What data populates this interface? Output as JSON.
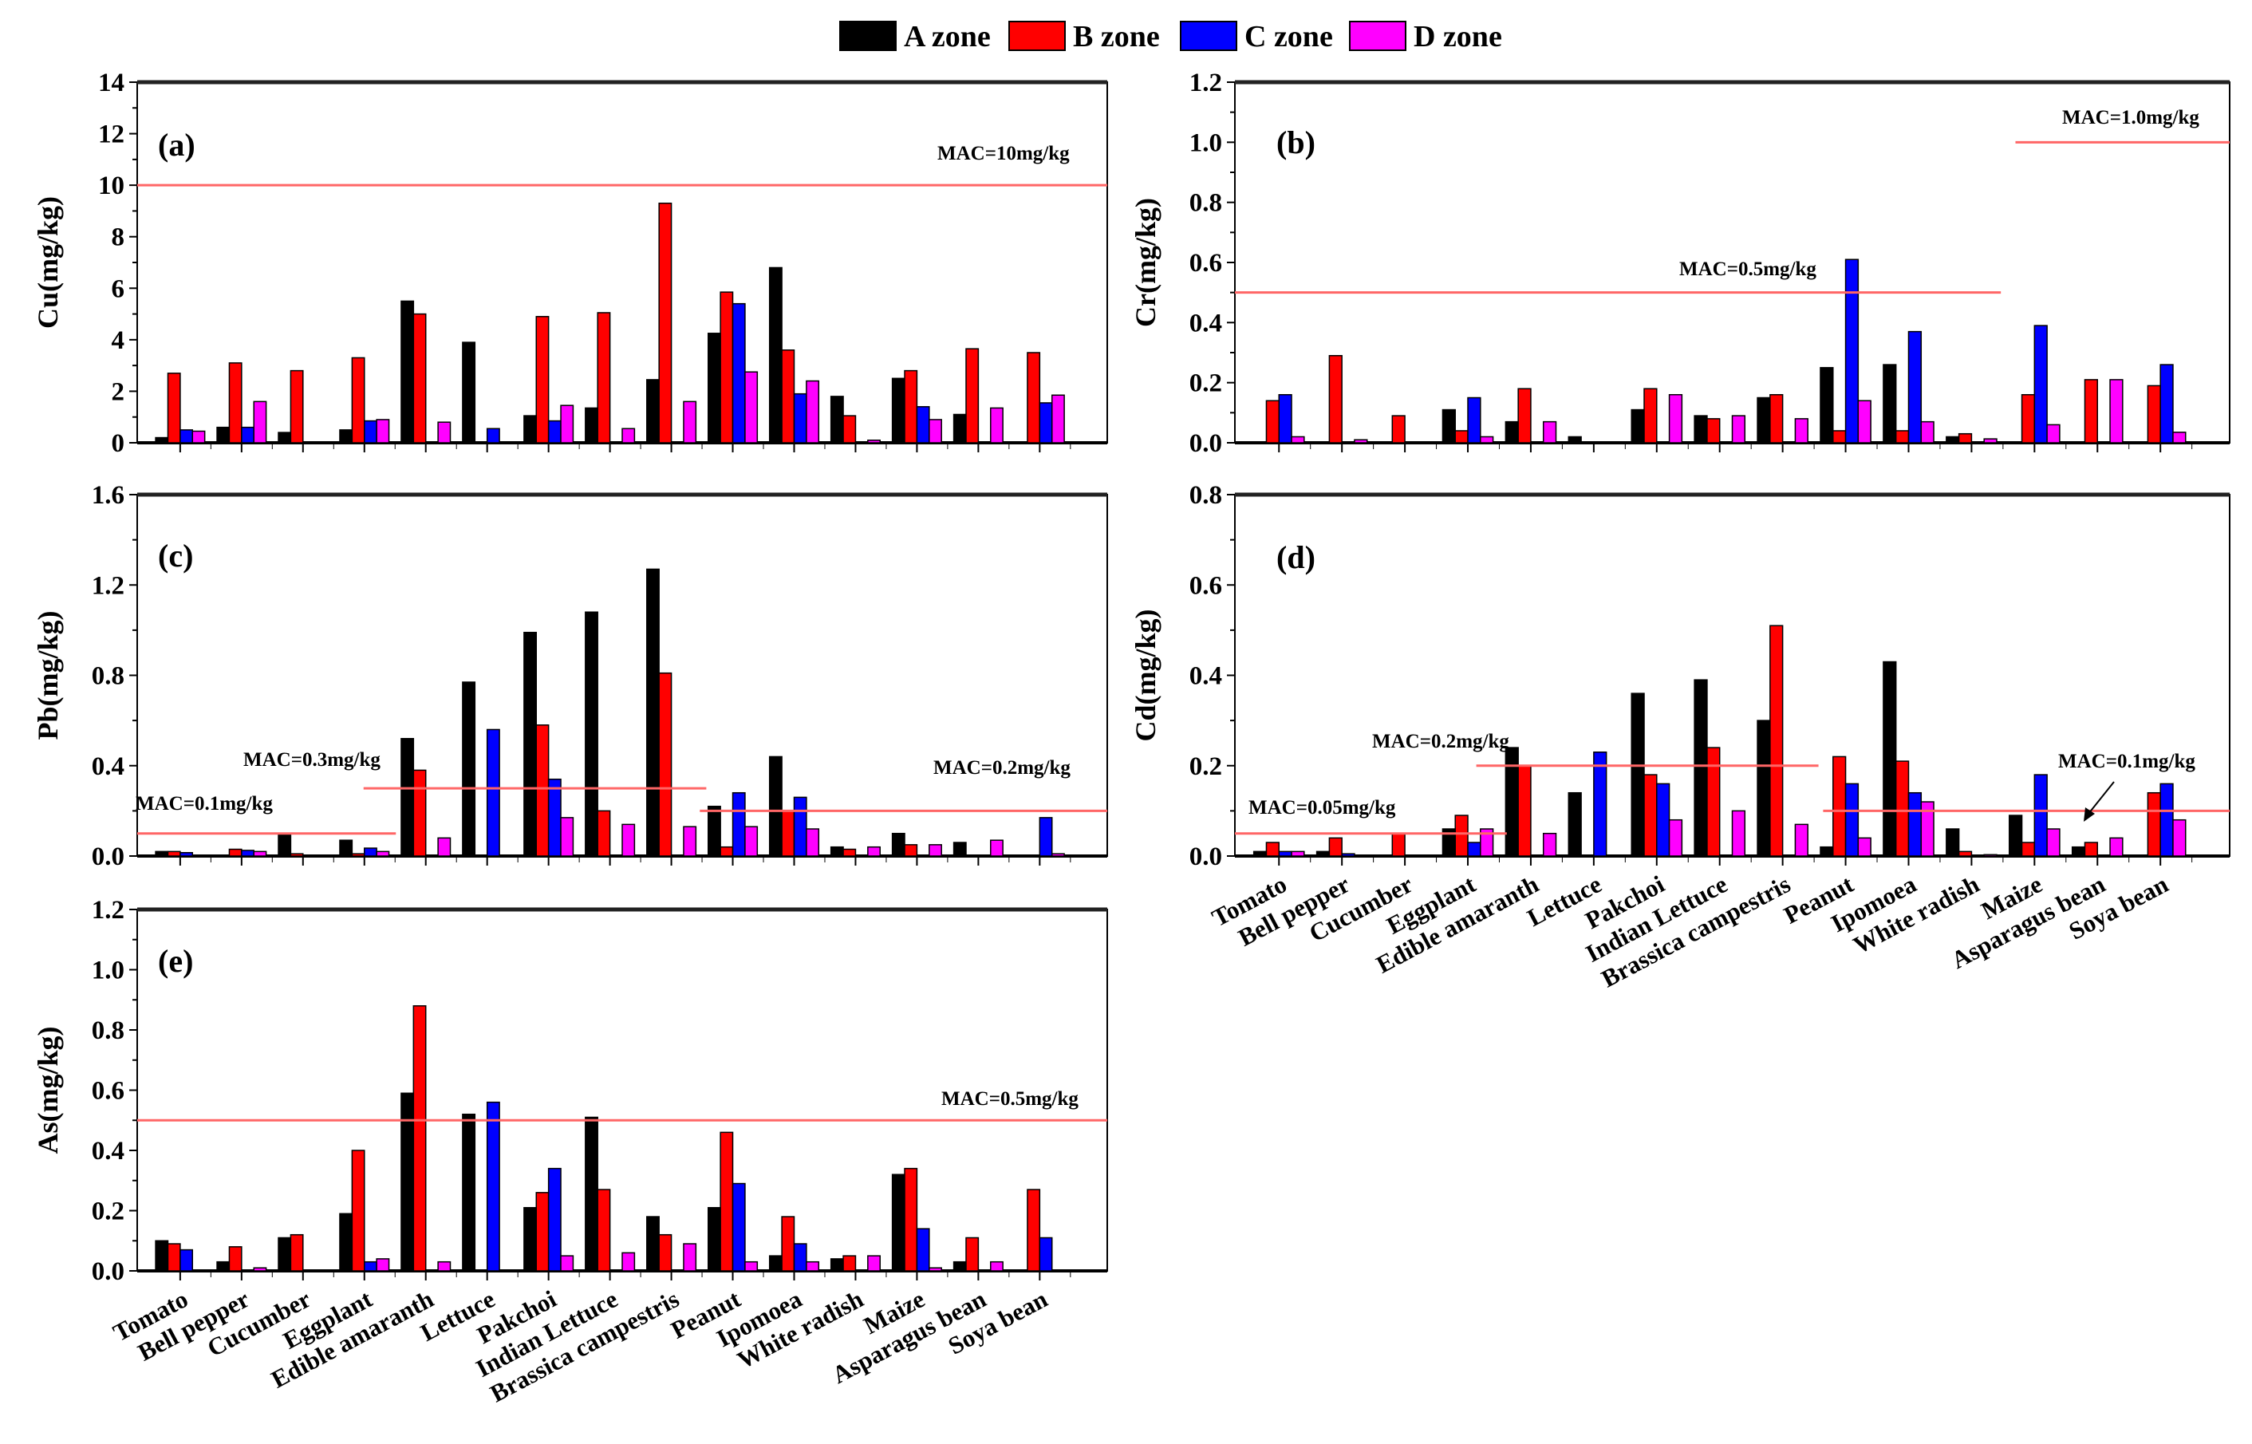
{
  "legend": [
    {
      "label": "A zone",
      "color": "#000000"
    },
    {
      "label": "B zone",
      "color": "#ff0000"
    },
    {
      "label": "C zone",
      "color": "#0000ff"
    },
    {
      "label": "D zone",
      "color": "#ff00ff"
    }
  ],
  "mac_line_color": "#ff6666",
  "chart_data": [
    {
      "type": "bar",
      "panel": "(a)",
      "ylabel": "Cu(mg/kg)",
      "ylim": [
        0,
        14
      ],
      "yticks": [
        0,
        2,
        4,
        6,
        8,
        10,
        12,
        14
      ],
      "tick_format": 0,
      "show_xlabels": false,
      "categories": [
        "Tomato",
        "Bell pepper",
        "Cucumber",
        "Eggplant",
        "Edible amaranth",
        "Lettuce",
        "Pakchoi",
        "Indian Lettuce",
        "Brassica campestris",
        "Peanut",
        "Ipomoea",
        "White radish",
        "Maize",
        "Asparagus bean",
        "Soya bean"
      ],
      "series": [
        {
          "name": "A zone",
          "values": [
            0.2,
            0.6,
            0.4,
            0.5,
            5.5,
            3.9,
            1.05,
            1.35,
            2.45,
            4.25,
            6.8,
            1.8,
            2.5,
            1.1,
            null
          ]
        },
        {
          "name": "B zone",
          "values": [
            2.7,
            3.1,
            2.8,
            3.3,
            5.0,
            null,
            4.9,
            5.05,
            9.3,
            5.85,
            3.6,
            1.05,
            2.8,
            3.65,
            3.5
          ]
        },
        {
          "name": "C zone",
          "values": [
            0.5,
            0.6,
            null,
            0.85,
            null,
            0.55,
            0.85,
            null,
            null,
            5.4,
            1.9,
            null,
            1.4,
            null,
            1.55
          ]
        },
        {
          "name": "D zone",
          "values": [
            0.45,
            1.6,
            null,
            0.9,
            0.8,
            null,
            1.45,
            0.55,
            1.6,
            2.75,
            2.4,
            0.1,
            0.9,
            1.35,
            1.85
          ]
        }
      ],
      "mac": [
        {
          "label": "MAC=10mg/kg",
          "value": 10,
          "from_category": 0,
          "to_category": 15
        }
      ]
    },
    {
      "type": "bar",
      "panel": "(b)",
      "ylabel": "Cr(mg/kg)",
      "ylim": [
        0,
        1.2
      ],
      "yticks": [
        0,
        0.2,
        0.4,
        0.6,
        0.8,
        1.0,
        1.2
      ],
      "tick_format": 1,
      "show_xlabels": false,
      "categories": [
        "Tomato",
        "Bell pepper",
        "Cucumber",
        "Eggplant",
        "Edible amaranth",
        "Lettuce",
        "Pakchoi",
        "Indian Lettuce",
        "Brassica campestris",
        "Peanut",
        "Ipomoea",
        "White radish",
        "Maize",
        "Asparagus bean",
        "Soya bean"
      ],
      "series": [
        {
          "name": "A zone",
          "values": [
            null,
            null,
            null,
            0.11,
            0.07,
            0.02,
            0.11,
            0.09,
            0.15,
            0.25,
            0.26,
            0.02,
            null,
            null,
            null
          ]
        },
        {
          "name": "B zone",
          "values": [
            0.14,
            0.29,
            0.09,
            0.04,
            0.18,
            null,
            0.18,
            0.08,
            0.16,
            0.04,
            0.04,
            0.03,
            0.16,
            0.21,
            0.19
          ]
        },
        {
          "name": "C zone",
          "values": [
            0.16,
            null,
            null,
            0.15,
            null,
            null,
            null,
            null,
            null,
            0.61,
            0.37,
            null,
            0.39,
            null,
            0.26
          ]
        },
        {
          "name": "D zone",
          "values": [
            0.02,
            0.01,
            null,
            0.02,
            0.07,
            null,
            0.16,
            0.09,
            0.08,
            0.14,
            0.07,
            0.013,
            0.06,
            0.21,
            0.035
          ]
        }
      ],
      "mac": [
        {
          "label": "MAC=0.5mg/kg",
          "value": 0.5,
          "from_category": 0,
          "to_category": 11.55
        },
        {
          "label": "MAC=1.0mg/kg",
          "value": 1.0,
          "from_category": 11.77,
          "to_category": 15
        }
      ]
    },
    {
      "type": "bar",
      "panel": "(c)",
      "ylabel": "Pb(mg/kg)",
      "ylim": [
        0,
        1.6
      ],
      "yticks": [
        0,
        0.4,
        0.8,
        1.2,
        1.6
      ],
      "tick_format": 1,
      "show_xlabels": false,
      "categories": [
        "Tomato",
        "Bell pepper",
        "Cucumber",
        "Eggplant",
        "Edible amaranth",
        "Lettuce",
        "Pakchoi",
        "Indian Lettuce",
        "Brassica campestris",
        "Peanut",
        "Ipomoea",
        "White radish",
        "Maize",
        "Asparagus bean",
        "Soya bean"
      ],
      "series": [
        {
          "name": "A zone",
          "values": [
            0.02,
            null,
            0.1,
            0.07,
            0.52,
            0.77,
            0.99,
            1.08,
            1.27,
            0.22,
            0.44,
            0.04,
            0.1,
            0.06,
            null
          ]
        },
        {
          "name": "B zone",
          "values": [
            0.02,
            0.03,
            0.01,
            0.01,
            0.38,
            null,
            0.58,
            0.2,
            0.81,
            0.04,
            0.2,
            0.03,
            0.05,
            null,
            null
          ]
        },
        {
          "name": "C zone",
          "values": [
            0.015,
            0.025,
            null,
            0.035,
            null,
            0.56,
            0.34,
            null,
            null,
            0.28,
            0.26,
            null,
            null,
            null,
            0.17
          ]
        },
        {
          "name": "D zone",
          "values": [
            null,
            0.02,
            null,
            0.02,
            0.08,
            null,
            0.17,
            0.14,
            0.13,
            0.13,
            0.12,
            0.04,
            0.05,
            0.07,
            0.01
          ]
        }
      ],
      "mac": [
        {
          "label": "MAC=0.1mg/kg",
          "value": 0.1,
          "from_category": 0,
          "to_category": 4.0
        },
        {
          "label": "MAC=0.3mg/kg",
          "value": 0.3,
          "from_category": 3.5,
          "to_category": 8.8
        },
        {
          "label": "MAC=0.2mg/kg",
          "value": 0.2,
          "from_category": 8.7,
          "to_category": 15
        }
      ]
    },
    {
      "type": "bar",
      "panel": "(d)",
      "ylabel": "Cd(mg/kg)",
      "ylim": [
        0,
        0.8
      ],
      "yticks": [
        0,
        0.2,
        0.4,
        0.6,
        0.8
      ],
      "tick_format": 1,
      "show_xlabels": true,
      "categories": [
        "Tomato",
        "Bell pepper",
        "Cucumber",
        "Eggplant",
        "Edible amaranth",
        "Lettuce",
        "Pakchoi",
        "Indian Lettuce",
        "Brassica campestris",
        "Peanut",
        "Ipomoea",
        "White radish",
        "Maize",
        "Asparagus bean",
        "Soya bean"
      ],
      "series": [
        {
          "name": "A zone",
          "values": [
            0.01,
            0.01,
            null,
            0.06,
            0.24,
            0.14,
            0.36,
            0.39,
            0.3,
            0.02,
            0.43,
            0.06,
            0.09,
            0.02,
            null
          ]
        },
        {
          "name": "B zone",
          "values": [
            0.03,
            0.04,
            0.05,
            0.09,
            0.2,
            null,
            0.18,
            0.24,
            0.51,
            0.22,
            0.21,
            0.01,
            0.03,
            0.03,
            0.14
          ]
        },
        {
          "name": "C zone",
          "values": [
            0.01,
            0.005,
            null,
            0.03,
            null,
            0.23,
            0.16,
            null,
            null,
            0.16,
            0.14,
            null,
            0.18,
            null,
            0.16
          ]
        },
        {
          "name": "D zone",
          "values": [
            0.01,
            null,
            null,
            0.06,
            0.05,
            null,
            0.08,
            0.1,
            0.07,
            0.04,
            0.12,
            0.003,
            0.06,
            0.04,
            0.08
          ]
        }
      ],
      "mac": [
        {
          "label": "MAC=0.05mg/kg",
          "value": 0.05,
          "from_category": 0,
          "to_category": 4.1
        },
        {
          "label": "MAC=0.2mg/kg",
          "value": 0.2,
          "from_category": 3.64,
          "to_category": 8.8
        },
        {
          "label": "MAC=0.1mg/kg",
          "value": 0.1,
          "from_category": 8.87,
          "to_category": 15
        }
      ]
    },
    {
      "type": "bar",
      "panel": "(e)",
      "ylabel": "As(mg/kg)",
      "ylim": [
        0,
        1.2
      ],
      "yticks": [
        0,
        0.2,
        0.4,
        0.6,
        0.8,
        1.0,
        1.2
      ],
      "tick_format": 1,
      "show_xlabels": true,
      "categories": [
        "Tomato",
        "Bell pepper",
        "Cucumber",
        "Eggplant",
        "Edible amaranth",
        "Lettuce",
        "Pakchoi",
        "Indian Lettuce",
        "Brassica campestris",
        "Peanut",
        "Ipomoea",
        "White radish",
        "Maize",
        "Asparagus bean",
        "Soya bean"
      ],
      "series": [
        {
          "name": "A zone",
          "values": [
            0.1,
            0.03,
            0.11,
            0.19,
            0.59,
            0.52,
            0.21,
            0.51,
            0.18,
            0.21,
            0.05,
            0.04,
            0.32,
            0.03,
            null
          ]
        },
        {
          "name": "B zone",
          "values": [
            0.09,
            0.08,
            0.12,
            0.4,
            0.88,
            null,
            0.26,
            0.27,
            0.12,
            0.46,
            0.18,
            0.05,
            0.34,
            0.11,
            0.27
          ]
        },
        {
          "name": "C zone",
          "values": [
            0.07,
            null,
            null,
            0.03,
            null,
            0.56,
            0.34,
            null,
            null,
            0.29,
            0.09,
            null,
            0.14,
            null,
            0.11
          ]
        },
        {
          "name": "D zone",
          "values": [
            null,
            0.01,
            null,
            0.04,
            0.03,
            null,
            0.05,
            0.06,
            0.09,
            0.03,
            0.03,
            0.05,
            0.01,
            0.03,
            null
          ]
        }
      ],
      "mac": [
        {
          "label": "MAC=0.5mg/kg",
          "value": 0.5,
          "from_category": 0,
          "to_category": 15
        }
      ]
    }
  ]
}
